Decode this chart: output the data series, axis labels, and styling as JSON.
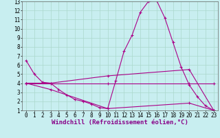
{
  "bg_color": "#c8eef0",
  "grid_color": "#aad8cc",
  "line_color": "#aa0088",
  "xlabel": "Windchill (Refroidissement éolien,°C)",
  "tick_fontsize": 5.5,
  "xlabel_fontsize": 6.5,
  "xlim": [
    -0.5,
    23.5
  ],
  "ylim": [
    1,
    13
  ],
  "xticks": [
    0,
    1,
    2,
    3,
    4,
    5,
    6,
    7,
    8,
    9,
    10,
    11,
    12,
    13,
    14,
    15,
    16,
    17,
    18,
    19,
    20,
    21,
    22,
    23
  ],
  "yticks": [
    1,
    2,
    3,
    4,
    5,
    6,
    7,
    8,
    9,
    10,
    11,
    12,
    13
  ],
  "lines": [
    {
      "x": [
        0,
        1,
        2,
        3,
        4,
        5,
        6,
        7,
        8,
        9,
        10,
        11,
        12,
        13,
        14,
        15,
        16,
        17,
        18,
        19,
        20,
        21,
        22,
        23
      ],
      "y": [
        6.5,
        5.0,
        4.1,
        4.0,
        3.3,
        2.7,
        2.2,
        2.0,
        1.7,
        1.3,
        1.2,
        4.3,
        7.5,
        9.3,
        11.8,
        13.0,
        13.1,
        11.2,
        8.5,
        5.8,
        3.8,
        2.5,
        1.5,
        1.0
      ]
    },
    {
      "x": [
        0,
        10,
        20,
        23
      ],
      "y": [
        4.0,
        4.0,
        4.0,
        4.0
      ]
    },
    {
      "x": [
        0,
        3,
        10,
        20,
        23
      ],
      "y": [
        4.0,
        4.0,
        4.8,
        5.5,
        1.0
      ]
    },
    {
      "x": [
        0,
        3,
        10,
        20,
        23
      ],
      "y": [
        4.0,
        3.3,
        1.2,
        1.8,
        1.0
      ]
    }
  ]
}
